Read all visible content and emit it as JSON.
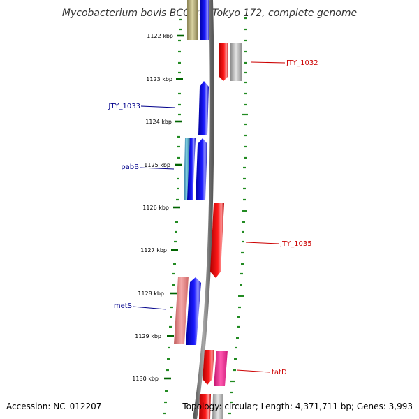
{
  "title": "Mycobacterium bovis BCG str. Tokyo 172, complete genome",
  "accession": "Accession: NC_012207",
  "summary": "Topology: circular; Length: 4,371,711 bp; Genes: 3,993",
  "colors": {
    "backbone": "#7a7a7a",
    "minor_tick": "#228b22",
    "major_tick": "#006400",
    "forward_label": "#cc0000",
    "reverse_label": "#00008b"
  },
  "scale_ticks": [
    {
      "label": "1122 kbp"
    },
    {
      "label": "1123 kbp"
    },
    {
      "label": "1124 kbp"
    },
    {
      "label": "1125 kbp"
    },
    {
      "label": "1126 kbp"
    },
    {
      "label": "1127 kbp"
    },
    {
      "label": "1128 kbp"
    },
    {
      "label": "1129 kbp"
    },
    {
      "label": "1130 kbp"
    }
  ],
  "gene_labels": [
    {
      "text": "JTY_1032",
      "strand": "forward"
    },
    {
      "text": "JTY_1033",
      "strand": "reverse"
    },
    {
      "text": "pabB",
      "strand": "reverse"
    },
    {
      "text": "JTY_1035",
      "strand": "forward"
    },
    {
      "text": "metS",
      "strand": "reverse"
    },
    {
      "text": "tatD",
      "strand": "forward"
    }
  ]
}
